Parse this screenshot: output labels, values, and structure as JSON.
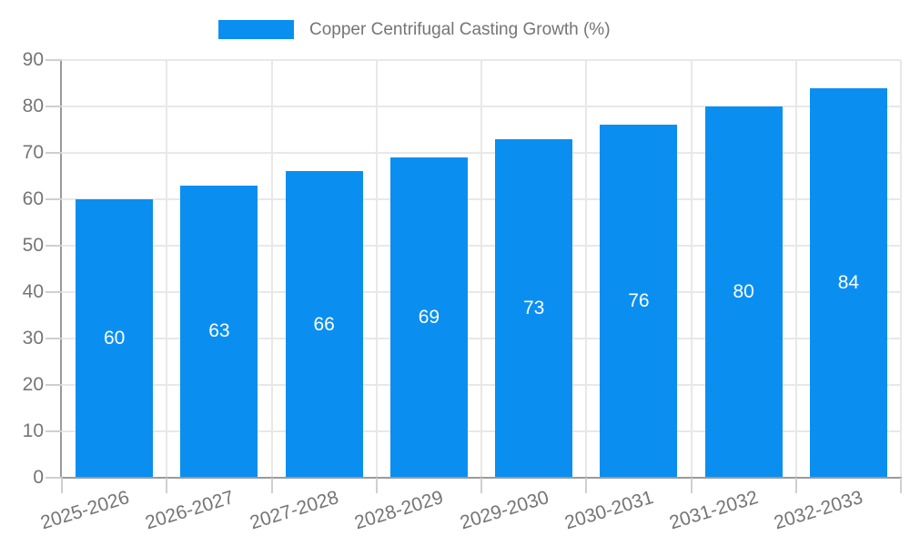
{
  "chart_data": {
    "type": "bar",
    "legend_label": "Copper Centrifugal Casting Growth (%)",
    "categories": [
      "2025-2026",
      "2026-2027",
      "2027-2028",
      "2028-2029",
      "2029-2030",
      "2030-2031",
      "2031-2032",
      "2032-2033"
    ],
    "values": [
      60,
      63,
      66,
      69,
      73,
      76,
      80,
      84
    ],
    "ylim": [
      0,
      90
    ],
    "ytick_step": 10,
    "ytick_labels": [
      "0",
      "10",
      "20",
      "30",
      "40",
      "50",
      "60",
      "70",
      "80",
      "90"
    ],
    "grid": true,
    "legend_position": "top-center",
    "bar_color": "#0a8ff1",
    "bar_label_color": "#ffffff",
    "grid_color": "#e8e8e8",
    "tick_color": "#cfcfcf",
    "axis_color": "#9a9a9a",
    "text_color": "#757575"
  }
}
